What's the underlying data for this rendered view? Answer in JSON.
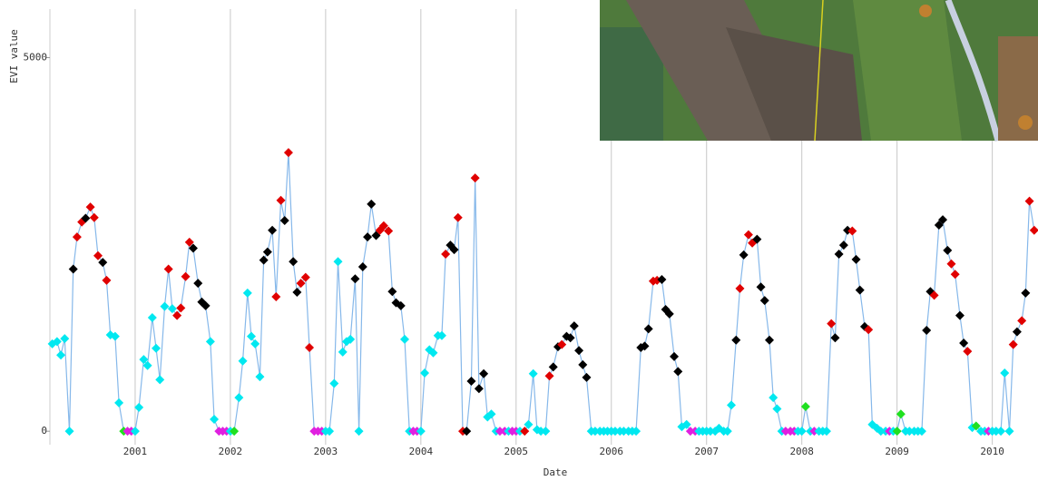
{
  "chart_data": {
    "type": "line",
    "y_label": "EVI value",
    "x_label": "Date",
    "xlim": [
      2000.105,
      2010.48
    ],
    "ylim": [
      -180,
      5650
    ],
    "xticks": [
      2001,
      2002,
      2003,
      2004,
      2005,
      2006,
      2007,
      2008,
      2009,
      2010
    ],
    "yticks": [
      0,
      5000
    ],
    "grid": true,
    "x": [
      2000.13,
      2000.18,
      2000.22,
      2000.26,
      2000.31,
      2000.35,
      2000.39,
      2000.44,
      2000.48,
      2000.53,
      2000.57,
      2000.61,
      2000.66,
      2000.7,
      2000.74,
      2000.79,
      2000.83,
      2000.88,
      2000.92,
      2000.96,
      2001.0,
      2001.04,
      2001.09,
      2001.13,
      2001.18,
      2001.22,
      2001.26,
      2001.31,
      2001.35,
      2001.39,
      2001.44,
      2001.48,
      2001.53,
      2001.57,
      2001.61,
      2001.66,
      2001.7,
      2001.74,
      2001.79,
      2001.83,
      2001.88,
      2001.92,
      2001.96,
      2002.0,
      2002.04,
      2002.09,
      2002.13,
      2002.18,
      2002.22,
      2002.26,
      2002.31,
      2002.35,
      2002.39,
      2002.44,
      2002.48,
      2002.53,
      2002.57,
      2002.61,
      2002.66,
      2002.7,
      2002.74,
      2002.79,
      2002.83,
      2002.88,
      2002.92,
      2002.96,
      2003.0,
      2003.04,
      2003.09,
      2003.13,
      2003.18,
      2003.22,
      2003.26,
      2003.31,
      2003.35,
      2003.39,
      2003.44,
      2003.48,
      2003.53,
      2003.57,
      2003.61,
      2003.66,
      2003.7,
      2003.74,
      2003.79,
      2003.83,
      2003.88,
      2003.92,
      2003.96,
      2004.0,
      2004.04,
      2004.09,
      2004.13,
      2004.18,
      2004.22,
      2004.26,
      2004.31,
      2004.35,
      2004.39,
      2004.44,
      2004.48,
      2004.53,
      2004.57,
      2004.61,
      2004.66,
      2004.7,
      2004.74,
      2004.79,
      2004.83,
      2004.88,
      2004.92,
      2004.96,
      2005.0,
      2005.04,
      2005.09,
      2005.13,
      2005.18,
      2005.22,
      2005.26,
      2005.31,
      2005.35,
      2005.39,
      2005.44,
      2005.48,
      2005.53,
      2005.57,
      2005.61,
      2005.66,
      2005.7,
      2005.74,
      2005.79,
      2005.83,
      2005.88,
      2005.92,
      2005.96,
      2006.0,
      2006.04,
      2006.09,
      2006.13,
      2006.18,
      2006.22,
      2006.26,
      2006.31,
      2006.35,
      2006.39,
      2006.44,
      2006.48,
      2006.53,
      2006.57,
      2006.61,
      2006.66,
      2006.7,
      2006.74,
      2006.79,
      2006.83,
      2006.88,
      2006.92,
      2006.96,
      2007.0,
      2007.04,
      2007.09,
      2007.13,
      2007.18,
      2007.22,
      2007.26,
      2007.31,
      2007.35,
      2007.39,
      2007.44,
      2007.48,
      2007.53,
      2007.57,
      2007.61,
      2007.66,
      2007.7,
      2007.74,
      2007.79,
      2007.83,
      2007.88,
      2007.92,
      2007.96,
      2008.0,
      2008.04,
      2008.09,
      2008.13,
      2008.18,
      2008.22,
      2008.26,
      2008.31,
      2008.35,
      2008.39,
      2008.44,
      2008.48,
      2008.53,
      2008.57,
      2008.61,
      2008.66,
      2008.7,
      2008.74,
      2008.79,
      2008.83,
      2008.88,
      2008.92,
      2008.96,
      2009.0,
      2009.04,
      2009.09,
      2009.13,
      2009.18,
      2009.22,
      2009.26,
      2009.31,
      2009.35,
      2009.39,
      2009.44,
      2009.48,
      2009.53,
      2009.57,
      2009.61,
      2009.66,
      2009.7,
      2009.74,
      2009.79,
      2009.83,
      2009.88,
      2009.92,
      2009.96,
      2010.0,
      2010.04,
      2010.09,
      2010.13,
      2010.18,
      2010.22,
      2010.26,
      2010.31,
      2010.35,
      2010.39,
      2010.44
    ],
    "series": [
      {
        "color": "#86b8ea",
        "values": [
          1170,
          1200,
          1020,
          1240,
          0,
          2170,
          2600,
          2800,
          2850,
          3000,
          2860,
          2350,
          2260,
          2020,
          1290,
          1270,
          380,
          0,
          0,
          0,
          0,
          320,
          960,
          880,
          1520,
          1110,
          690,
          1670,
          2170,
          1640,
          1550,
          1650,
          2070,
          2530,
          2450,
          1980,
          1730,
          1680,
          1200,
          160,
          0,
          0,
          0,
          0,
          0,
          450,
          940,
          1850,
          1270,
          1170,
          730,
          2290,
          2400,
          2690,
          1800,
          3090,
          2820,
          3730,
          2270,
          1860,
          1980,
          2060,
          1120,
          0,
          0,
          0,
          0,
          0,
          640,
          2270,
          1060,
          1200,
          1230,
          2040,
          0,
          2200,
          2600,
          3040,
          2620,
          2690,
          2750,
          2680,
          1870,
          1720,
          1680,
          1230,
          0,
          0,
          0,
          0,
          780,
          1090,
          1050,
          1280,
          1280,
          2370,
          2490,
          2430,
          2860,
          0,
          0,
          670,
          3390,
          570,
          770,
          190,
          230,
          0,
          0,
          0,
          0,
          0,
          0,
          0,
          0,
          90,
          770,
          20,
          0,
          0,
          740,
          860,
          1130,
          1160,
          1270,
          1250,
          1410,
          1080,
          890,
          720,
          0,
          0,
          0,
          0,
          0,
          0,
          0,
          0,
          0,
          0,
          0,
          0,
          1120,
          1140,
          1370,
          2010,
          2020,
          2030,
          1630,
          1570,
          1000,
          800,
          60,
          90,
          0,
          0,
          0,
          0,
          0,
          0,
          0,
          40,
          0,
          0,
          350,
          1220,
          1910,
          2360,
          2630,
          2520,
          2570,
          1930,
          1750,
          1220,
          450,
          300,
          0,
          0,
          0,
          0,
          0,
          0,
          330,
          0,
          0,
          0,
          0,
          0,
          1440,
          1250,
          2370,
          2490,
          2690,
          2680,
          2300,
          1890,
          1400,
          1360,
          90,
          40,
          0,
          0,
          0,
          0,
          0,
          230,
          0,
          0,
          0,
          0,
          0,
          1350,
          1870,
          1820,
          2760,
          2830,
          2420,
          2240,
          2100,
          1550,
          1180,
          1070,
          50,
          70,
          0,
          0,
          0,
          0,
          0,
          0,
          780,
          0,
          1160,
          1330,
          1480,
          1850,
          3080,
          2690
        ],
        "marker_colors": [
          "#00e8f0",
          "#00e8f0",
          "#00e8f0",
          "#00e8f0",
          "#00e8f0",
          "#000000",
          "#e00000",
          "#e00000",
          "#000000",
          "#e00000",
          "#e00000",
          "#e00000",
          "#000000",
          "#e00000",
          "#00e8f0",
          "#00e8f0",
          "#00e8f0",
          "#20e020",
          "#e020e0",
          "#e020e0",
          "#00e8f0",
          "#00e8f0",
          "#00e8f0",
          "#00e8f0",
          "#00e8f0",
          "#00e8f0",
          "#00e8f0",
          "#00e8f0",
          "#e00000",
          "#00e8f0",
          "#e00000",
          "#e00000",
          "#e00000",
          "#e00000",
          "#000000",
          "#000000",
          "#000000",
          "#000000",
          "#00e8f0",
          "#00e8f0",
          "#e020e0",
          "#e020e0",
          "#e020e0",
          "#00e8f0",
          "#20e020",
          "#00e8f0",
          "#00e8f0",
          "#00e8f0",
          "#00e8f0",
          "#00e8f0",
          "#00e8f0",
          "#000000",
          "#000000",
          "#000000",
          "#e00000",
          "#e00000",
          "#000000",
          "#e00000",
          "#000000",
          "#000000",
          "#e00000",
          "#e00000",
          "#e00000",
          "#e020e0",
          "#e020e0",
          "#e020e0",
          "#00e8f0",
          "#00e8f0",
          "#00e8f0",
          "#00e8f0",
          "#00e8f0",
          "#00e8f0",
          "#00e8f0",
          "#000000",
          "#00e8f0",
          "#000000",
          "#000000",
          "#000000",
          "#000000",
          "#e00000",
          "#e00000",
          "#e00000",
          "#000000",
          "#000000",
          "#000000",
          "#00e8f0",
          "#00e8f0",
          "#e020e0",
          "#e020e0",
          "#00e8f0",
          "#00e8f0",
          "#00e8f0",
          "#00e8f0",
          "#00e8f0",
          "#00e8f0",
          "#e00000",
          "#000000",
          "#000000",
          "#e00000",
          "#e00000",
          "#000000",
          "#000000",
          "#e00000",
          "#000000",
          "#000000",
          "#00e8f0",
          "#00e8f0",
          "#00e8f0",
          "#e020e0",
          "#e020e0",
          "#00e8f0",
          "#e020e0",
          "#e020e0",
          "#00e8f0",
          "#e00000",
          "#00e8f0",
          "#00e8f0",
          "#00e8f0",
          "#00e8f0",
          "#00e8f0",
          "#e00000",
          "#000000",
          "#000000",
          "#e00000",
          "#000000",
          "#000000",
          "#000000",
          "#000000",
          "#000000",
          "#000000",
          "#00e8f0",
          "#00e8f0",
          "#00e8f0",
          "#00e8f0",
          "#00e8f0",
          "#00e8f0",
          "#00e8f0",
          "#00e8f0",
          "#00e8f0",
          "#00e8f0",
          "#00e8f0",
          "#00e8f0",
          "#000000",
          "#000000",
          "#000000",
          "#e00000",
          "#e00000",
          "#000000",
          "#000000",
          "#000000",
          "#000000",
          "#000000",
          "#00e8f0",
          "#00e8f0",
          "#e020e0",
          "#e020e0",
          "#00e8f0",
          "#00e8f0",
          "#00e8f0",
          "#00e8f0",
          "#00e8f0",
          "#00e8f0",
          "#00e8f0",
          "#00e8f0",
          "#00e8f0",
          "#000000",
          "#e00000",
          "#000000",
          "#e00000",
          "#e00000",
          "#000000",
          "#000000",
          "#000000",
          "#000000",
          "#00e8f0",
          "#00e8f0",
          "#00e8f0",
          "#e020e0",
          "#e020e0",
          "#e020e0",
          "#00e8f0",
          "#00e8f0",
          "#20e020",
          "#00e8f0",
          "#e020e0",
          "#00e8f0",
          "#00e8f0",
          "#00e8f0",
          "#e00000",
          "#000000",
          "#000000",
          "#000000",
          "#000000",
          "#e00000",
          "#000000",
          "#000000",
          "#000000",
          "#e00000",
          "#00e8f0",
          "#00e8f0",
          "#00e8f0",
          "#00e8f0",
          "#e020e0",
          "#00e8f0",
          "#20e020",
          "#20e020",
          "#00e8f0",
          "#00e8f0",
          "#00e8f0",
          "#00e8f0",
          "#00e8f0",
          "#000000",
          "#000000",
          "#e00000",
          "#000000",
          "#000000",
          "#000000",
          "#e00000",
          "#e00000",
          "#000000",
          "#000000",
          "#e00000",
          "#00e8f0",
          "#20e020",
          "#00e8f0",
          "#00e8f0",
          "#e020e0",
          "#00e8f0",
          "#00e8f0",
          "#00e8f0",
          "#00e8f0",
          "#00e8f0",
          "#e00000",
          "#000000",
          "#e00000",
          "#000000",
          "#e00000",
          "#e00000"
        ]
      }
    ]
  }
}
